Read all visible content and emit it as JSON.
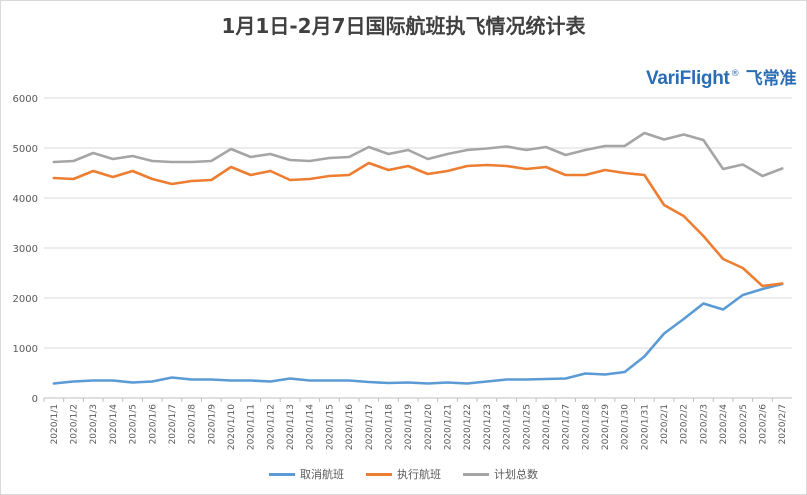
{
  "chart_data": {
    "type": "line",
    "title": "1月1日-2月7日国际航班执飞情况统计表",
    "xlabel": "",
    "ylabel": "",
    "ylim": [
      0,
      6000
    ],
    "yticks": [
      0,
      1000,
      2000,
      3000,
      4000,
      5000,
      6000
    ],
    "grid": true,
    "legend": "bottom",
    "categories": [
      "2020/1/1",
      "2020/1/2",
      "2020/1/3",
      "2020/1/4",
      "2020/1/5",
      "2020/1/6",
      "2020/1/7",
      "2020/1/8",
      "2020/1/9",
      "2020/1/10",
      "2020/1/11",
      "2020/1/12",
      "2020/1/13",
      "2020/1/14",
      "2020/1/15",
      "2020/1/16",
      "2020/1/17",
      "2020/1/18",
      "2020/1/19",
      "2020/1/20",
      "2020/1/21",
      "2020/1/22",
      "2020/1/23",
      "2020/1/24",
      "2020/1/25",
      "2020/1/26",
      "2020/1/27",
      "2020/1/28",
      "2020/1/29",
      "2020/1/30",
      "2020/1/31",
      "2020/2/1",
      "2020/2/2",
      "2020/2/3",
      "2020/2/4",
      "2020/2/5",
      "2020/2/6",
      "2020/2/7"
    ],
    "series": [
      {
        "name": "取消航班",
        "color": "#5b9bd5",
        "values": [
          290,
          330,
          350,
          350,
          310,
          330,
          410,
          370,
          370,
          350,
          350,
          330,
          390,
          350,
          350,
          350,
          320,
          300,
          310,
          290,
          310,
          290,
          330,
          370,
          370,
          380,
          390,
          490,
          470,
          520,
          830,
          1290,
          1580,
          1890,
          1770,
          2060,
          2180,
          2280
        ]
      },
      {
        "name": "执行航班",
        "color": "#ed7d31",
        "values": [
          4400,
          4380,
          4540,
          4420,
          4540,
          4380,
          4280,
          4340,
          4360,
          4620,
          4460,
          4540,
          4360,
          4380,
          4440,
          4460,
          4700,
          4560,
          4640,
          4480,
          4540,
          4640,
          4660,
          4640,
          4580,
          4620,
          4460,
          4460,
          4560,
          4500,
          4460,
          3860,
          3640,
          3240,
          2780,
          2600,
          2240,
          2290
        ]
      },
      {
        "name": "计划总数",
        "color": "#a5a5a5",
        "values": [
          4720,
          4740,
          4900,
          4780,
          4840,
          4740,
          4720,
          4720,
          4740,
          4980,
          4820,
          4880,
          4760,
          4740,
          4800,
          4820,
          5020,
          4880,
          4960,
          4780,
          4880,
          4960,
          4990,
          5030,
          4960,
          5020,
          4860,
          4960,
          5040,
          5040,
          5300,
          5170,
          5270,
          5160,
          4580,
          4670,
          4440,
          4590
        ]
      }
    ]
  },
  "brand": {
    "latin": "VariFlight",
    "reg": "®",
    "cn": "飞常准",
    "color": "#2a6db5"
  }
}
